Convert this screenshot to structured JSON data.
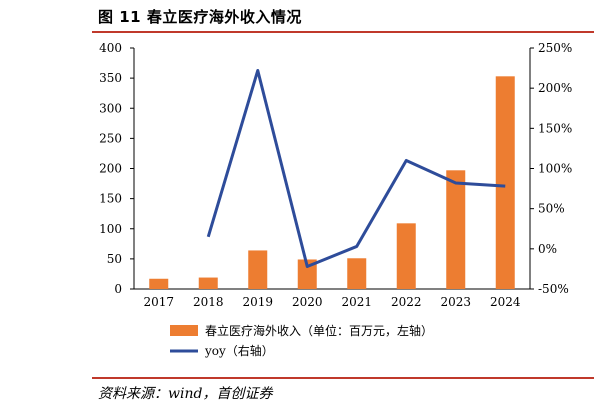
{
  "title": "图 11  春立医疗海外收入情况",
  "source": "资料来源：wind，首创证券",
  "chart_data": {
    "type": "bar",
    "categories": [
      "2017",
      "2018",
      "2019",
      "2020",
      "2021",
      "2022",
      "2023",
      "2024"
    ],
    "series": [
      {
        "name": "春立医疗海外收入（单位：百万元，左轴）",
        "type": "bar",
        "axis": "left",
        "color": "#ED7D31",
        "values": [
          17,
          19,
          64,
          49,
          51,
          109,
          197,
          353
        ]
      },
      {
        "name": "yoy（右轴）",
        "type": "line",
        "axis": "right",
        "color": "#2E4C9A",
        "values": [
          null,
          15,
          222,
          -22,
          3,
          110,
          82,
          78
        ]
      }
    ],
    "y_left": {
      "min": 0,
      "max": 400,
      "ticks": [
        "0",
        "50",
        "100",
        "150",
        "200",
        "250",
        "300",
        "350",
        "400"
      ]
    },
    "y_right": {
      "min": -50,
      "max": 250,
      "ticks": [
        "-50%",
        "0%",
        "50%",
        "100%",
        "150%",
        "200%",
        "250%"
      ]
    },
    "grid": false,
    "legend_position": "bottom"
  }
}
